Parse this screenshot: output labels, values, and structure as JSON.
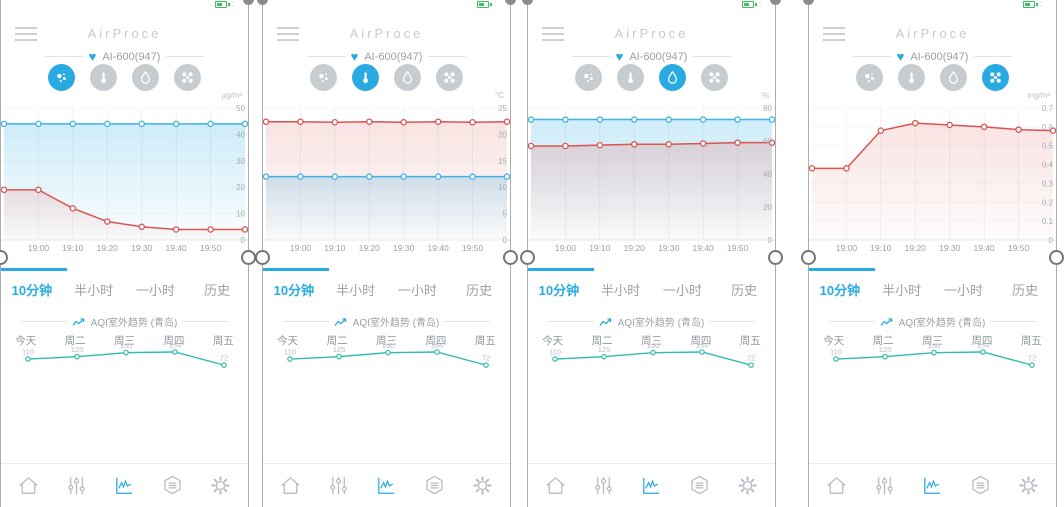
{
  "statusbar": {
    "battery_icon": "battery-charging-green"
  },
  "header": {
    "menu_icon": "hamburger-icon",
    "title": "AirProce",
    "heart_icon": "heart-icon",
    "device_label": "AI-600(947)",
    "sensor_icons": [
      {
        "name": "particles"
      },
      {
        "name": "temperature"
      },
      {
        "name": "humidity"
      },
      {
        "name": "fan"
      }
    ]
  },
  "tabs": {
    "items": [
      "10分钟",
      "半小时",
      "一小时",
      "历史"
    ],
    "active_index": 0
  },
  "aqi_chart": {
    "type": "line",
    "title": "AQI室外趋势 (青岛)",
    "trend_icon": "trend-arrow-icon",
    "categories": [
      "今天",
      "周二",
      "周三",
      "周四",
      "周五"
    ],
    "values": [
      110,
      125,
      150,
      154,
      72
    ],
    "line_color": "#2fbcb0"
  },
  "nav": {
    "items": [
      "home",
      "sliders",
      "trend-chart",
      "filter",
      "settings"
    ],
    "active": "trend-chart"
  },
  "colors": {
    "accent_blue": "#29abe2",
    "line_blue": "#3cb4e5",
    "line_red": "#d9534f",
    "aqi_teal": "#2fbcb0",
    "battery_green": "#3dbf63"
  },
  "panels": [
    {
      "active_sensor": "particles",
      "active_sensor_index": 0,
      "unit": "µg/m³",
      "chart": {
        "type": "area-line",
        "x_labels": [
          "19:00",
          "19:10",
          "19:20",
          "19:30",
          "19:40",
          "19:50"
        ],
        "ymax": 50,
        "yticks": [
          50,
          40,
          30,
          20,
          10,
          0
        ],
        "series": [
          {
            "name": "blue",
            "color": "#3cb4e5",
            "fill_opacity": 0.25,
            "values": [
              44,
              44,
              44,
              44,
              44,
              44,
              44,
              44
            ]
          },
          {
            "name": "red",
            "color": "#d9534f",
            "fill_opacity": 0.16,
            "values": [
              19,
              19,
              12,
              7,
              5,
              4,
              4,
              4
            ]
          }
        ]
      }
    },
    {
      "active_sensor": "temperature",
      "active_sensor_index": 1,
      "unit": "°C",
      "chart": {
        "type": "area-line",
        "x_labels": [
          "19:00",
          "19:10",
          "19:20",
          "19:30",
          "19:40",
          "19:50"
        ],
        "ymax": 25,
        "yticks": [
          25,
          20,
          15,
          10,
          5,
          0
        ],
        "series": [
          {
            "name": "blue",
            "color": "#3cb4e5",
            "fill_opacity": 0.25,
            "values": [
              12,
              12,
              12,
              12,
              12,
              12,
              12,
              12
            ]
          },
          {
            "name": "red",
            "color": "#d9534f",
            "fill_opacity": 0.16,
            "values": [
              22.4,
              22.4,
              22.3,
              22.4,
              22.3,
              22.4,
              22.3,
              22.4
            ]
          }
        ]
      }
    },
    {
      "active_sensor": "humidity",
      "active_sensor_index": 2,
      "unit": "%",
      "chart": {
        "type": "area-line",
        "x_labels": [
          "19:00",
          "19:10",
          "19:20",
          "19:30",
          "19:40",
          "19:50"
        ],
        "ymax": 80,
        "yticks": [
          80,
          60,
          40,
          20,
          0
        ],
        "series": [
          {
            "name": "blue",
            "color": "#3cb4e5",
            "fill_opacity": 0.25,
            "values": [
              73,
              73,
              73,
              73,
              73,
              73,
              73,
              73
            ]
          },
          {
            "name": "red",
            "color": "#d9534f",
            "fill_opacity": 0.2,
            "values": [
              57,
              57,
              57.5,
              58,
              58,
              58.5,
              59,
              59
            ]
          }
        ]
      }
    },
    {
      "active_sensor": "fan",
      "active_sensor_index": 3,
      "unit": "mg/m³",
      "chart": {
        "type": "area-line",
        "x_labels": [
          "19:00",
          "19:10",
          "19:20",
          "19:30",
          "19:40",
          "19:50"
        ],
        "ymax": 0.7,
        "yticks": [
          0.7,
          0.6,
          0.5,
          0.4,
          0.3,
          0.2,
          0.1,
          0
        ],
        "series": [
          {
            "name": "red",
            "color": "#d9534f",
            "fill_opacity": 0.16,
            "values": [
              0.38,
              0.38,
              0.58,
              0.62,
              0.61,
              0.6,
              0.585,
              0.58
            ]
          }
        ]
      }
    }
  ]
}
